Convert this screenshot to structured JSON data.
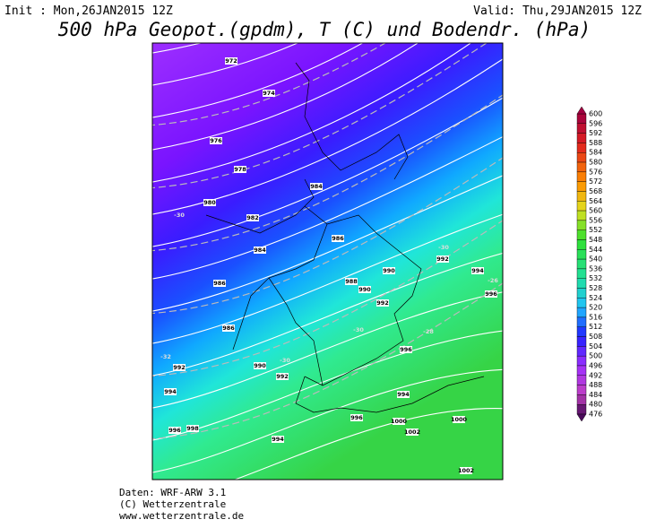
{
  "header": {
    "init": "Init : Mon,26JAN2015 12Z",
    "valid": "Valid: Thu,29JAN2015 12Z",
    "title": "500 hPa Geopot.(gpdm), T (C) und Bodendr. (hPa)"
  },
  "map": {
    "isobar_labels": [
      "972",
      "974",
      "976",
      "978",
      "980",
      "982",
      "984",
      "984",
      "986",
      "986",
      "988",
      "990",
      "990",
      "992",
      "994",
      "996",
      "986",
      "992",
      "990",
      "992",
      "992",
      "994",
      "996",
      "994",
      "996",
      "1000",
      "1000",
      "1002",
      "996",
      "998",
      "994",
      "1002"
    ],
    "temperature_labels": [
      "-30",
      "-30",
      "-30",
      "-30",
      "-32",
      "-28",
      "-26"
    ]
  },
  "legend": {
    "levels": [
      600,
      596,
      592,
      588,
      584,
      580,
      576,
      572,
      568,
      564,
      560,
      556,
      552,
      548,
      544,
      540,
      536,
      532,
      528,
      524,
      520,
      516,
      512,
      508,
      504,
      500,
      496,
      492,
      488,
      484,
      480,
      476
    ]
  },
  "footer": {
    "lines": [
      "Daten: WRF-ARW 3.1",
      "(C) Wetterzentrale",
      "www.wetterzentrale.de"
    ]
  }
}
